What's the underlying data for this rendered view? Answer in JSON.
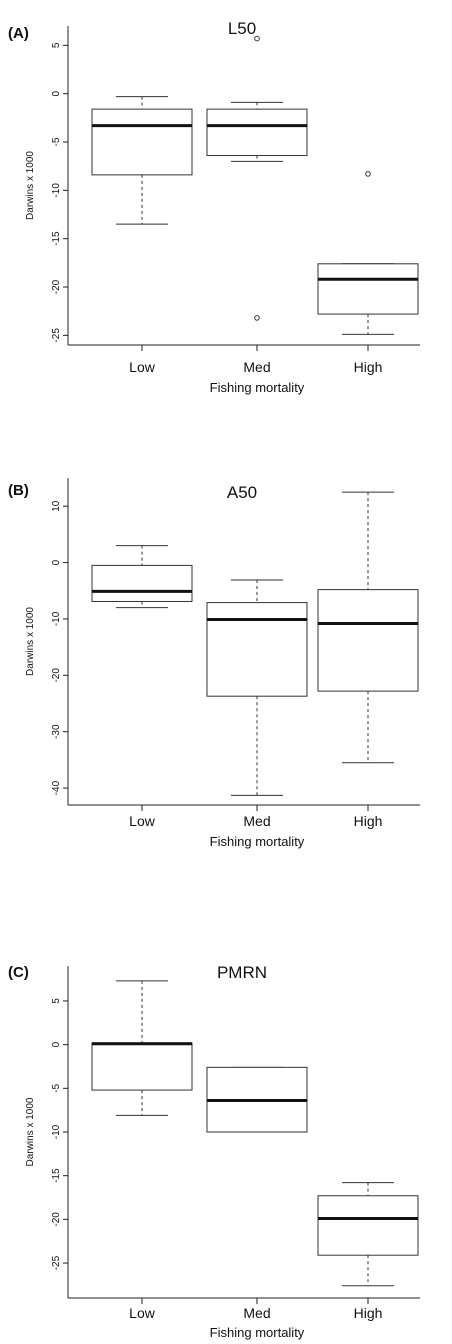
{
  "chart_data": [
    {
      "type": "boxplot",
      "panel_label": "(A)",
      "title": "L50",
      "xlabel": "Fishing mortality",
      "ylabel": "Darwins x 1000",
      "categories": [
        "Low",
        "Med",
        "High"
      ],
      "yticks": [
        5,
        0,
        -5,
        -10,
        -15,
        -20,
        -25
      ],
      "ylim": [
        -26,
        7
      ],
      "boxes": [
        {
          "category": "Low",
          "whisker_low": -13.5,
          "q1": -8.4,
          "median": -3.3,
          "q3": -1.6,
          "whisker_high": -0.3,
          "outliers": []
        },
        {
          "category": "Med",
          "whisker_low": -7.0,
          "q1": -6.4,
          "median": -3.3,
          "q3": -1.6,
          "whisker_high": -0.9,
          "outliers": [
            5.7,
            -23.2
          ]
        },
        {
          "category": "High",
          "whisker_low": -24.9,
          "q1": -22.8,
          "median": -19.2,
          "q3": -17.6,
          "whisker_high": -17.6,
          "outliers": [
            -8.3
          ]
        }
      ]
    },
    {
      "type": "boxplot",
      "panel_label": "(B)",
      "title": "A50",
      "xlabel": "Fishing mortality",
      "ylabel": "Darwins x 1000",
      "categories": [
        "Low",
        "Med",
        "High"
      ],
      "yticks": [
        10,
        0,
        -10,
        -20,
        -30,
        -40
      ],
      "ylim": [
        -43,
        15
      ],
      "boxes": [
        {
          "category": "Low",
          "whisker_low": -8.0,
          "q1": -6.9,
          "median": -5.1,
          "q3": -0.5,
          "whisker_high": 3.0,
          "outliers": []
        },
        {
          "category": "Med",
          "whisker_low": -41.3,
          "q1": -23.7,
          "median": -10.1,
          "q3": -7.1,
          "whisker_high": -3.1,
          "outliers": []
        },
        {
          "category": "High",
          "whisker_low": -35.5,
          "q1": -22.8,
          "median": -10.8,
          "q3": -4.8,
          "whisker_high": 12.5,
          "outliers": []
        }
      ]
    },
    {
      "type": "boxplot",
      "panel_label": "(C)",
      "title": "PMRN",
      "xlabel": "Fishing mortality",
      "ylabel": "Darwins x 1000",
      "categories": [
        "Low",
        "Med",
        "High"
      ],
      "yticks": [
        5,
        0,
        -5,
        -10,
        -15,
        -20,
        -25
      ],
      "ylim": [
        -29,
        9
      ],
      "boxes": [
        {
          "category": "Low",
          "whisker_low": -8.1,
          "q1": -5.2,
          "median": 0.1,
          "q3": 0.2,
          "whisker_high": 7.3,
          "outliers": []
        },
        {
          "category": "Med",
          "whisker_low": -10.0,
          "q1": -10.0,
          "median": -6.4,
          "q3": -2.6,
          "whisker_high": -2.6,
          "outliers": []
        },
        {
          "category": "High",
          "whisker_low": -27.6,
          "q1": -24.1,
          "median": -19.9,
          "q3": -17.3,
          "whisker_high": -15.8,
          "outliers": []
        }
      ]
    }
  ]
}
